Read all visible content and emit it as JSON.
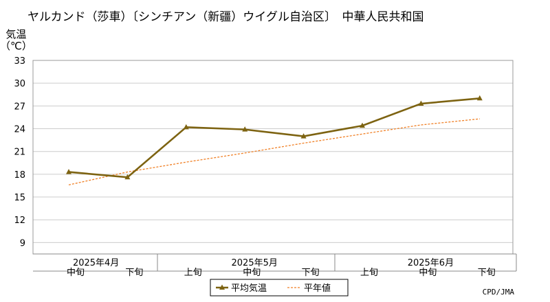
{
  "chart_data": {
    "type": "line",
    "title": "ヤルカンド（莎車）〔シンチアン（新疆）ウイグル自治区〕　中華人民共和国",
    "ylabel_line1": "気温",
    "ylabel_line2": "（℃）",
    "ylim": [
      7.5,
      33
    ],
    "yticks": [
      9,
      12,
      15,
      18,
      21,
      24,
      27,
      30,
      33
    ],
    "categories": [
      "中旬",
      "下旬",
      "上旬",
      "中旬",
      "下旬",
      "上旬",
      "中旬",
      "下旬"
    ],
    "months": [
      {
        "label": "2025年4月",
        "center_index": 0.3
      },
      {
        "label": "2025年5月",
        "center_index": 3
      },
      {
        "label": "2025年6月",
        "center_index": 6
      }
    ],
    "series": [
      {
        "name": "平均気温",
        "values": [
          18.3,
          17.6,
          24.2,
          23.9,
          23.0,
          24.4,
          27.3,
          28.0
        ],
        "color": "#7d6311"
      },
      {
        "name": "平年値",
        "values": [
          16.6,
          18.3,
          19.6,
          20.8,
          22.1,
          23.3,
          24.5,
          25.3
        ],
        "color": "#f07f24"
      }
    ],
    "grid": true,
    "legend_position": "bottom-center"
  },
  "credit": "CPD/JMA"
}
